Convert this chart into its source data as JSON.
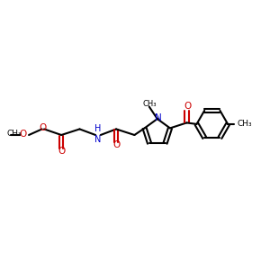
{
  "bg_color": "#ffffff",
  "bond_color": "#000000",
  "oxygen_color": "#cc0000",
  "nitrogen_color": "#0000cc",
  "figsize": [
    3.0,
    3.0
  ],
  "dpi": 100,
  "xlim": [
    0,
    10
  ],
  "ylim": [
    2,
    8
  ]
}
